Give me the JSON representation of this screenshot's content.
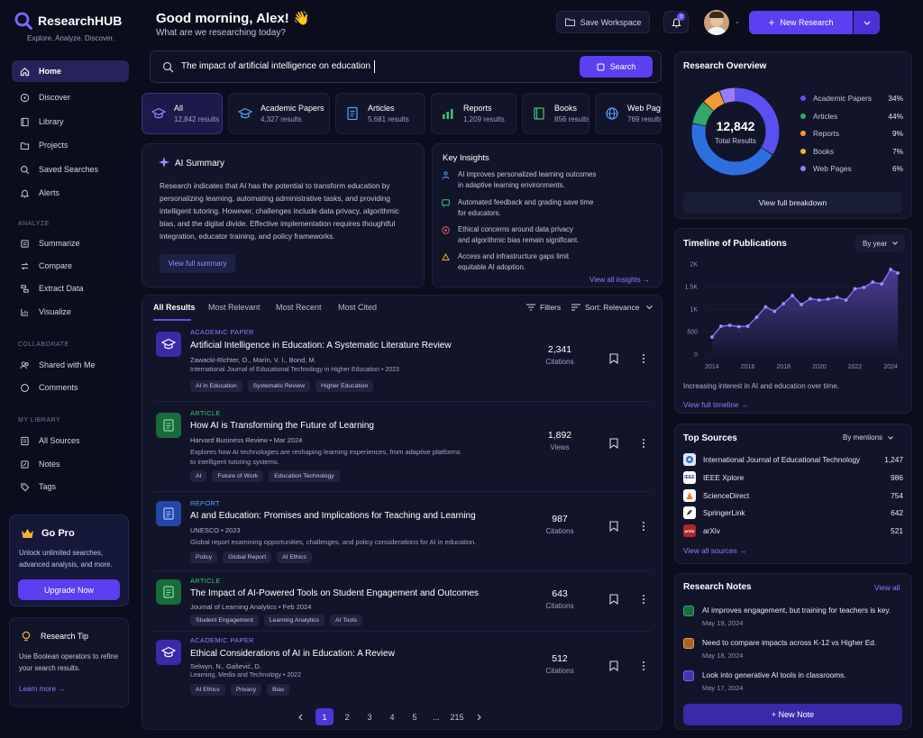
{
  "app": {
    "name": "ResearchHUB",
    "tagline": "Explore. Analyze. Discover."
  },
  "sidebar": {
    "main": [
      {
        "label": "Home",
        "icon": "home-icon",
        "active": true
      },
      {
        "label": "Discover",
        "icon": "compass-icon"
      },
      {
        "label": "Library",
        "icon": "book-icon"
      },
      {
        "label": "Projects",
        "icon": "folder-icon"
      },
      {
        "label": "Saved Searches",
        "icon": "search-icon"
      },
      {
        "label": "Alerts",
        "icon": "bell-icon"
      }
    ],
    "analyze_heading": "ANALYZE",
    "analyze": [
      {
        "label": "Summarize",
        "icon": "list-icon"
      },
      {
        "label": "Compare",
        "icon": "compare-icon"
      },
      {
        "label": "Extract Data",
        "icon": "extract-icon"
      },
      {
        "label": "Visualize",
        "icon": "chart-icon"
      }
    ],
    "collaborate_heading": "COLLABORATE",
    "collaborate": [
      {
        "label": "Shared with Me",
        "icon": "users-icon"
      },
      {
        "label": "Comments",
        "icon": "comment-icon"
      }
    ],
    "library_heading": "MY LIBRARY",
    "library": [
      {
        "label": "All Sources",
        "icon": "sources-icon"
      },
      {
        "label": "Notes",
        "icon": "note-icon"
      },
      {
        "label": "Tags",
        "icon": "tag-icon"
      }
    ],
    "pro": {
      "title": "Go Pro",
      "text": "Unlock unlimited searches, advanced analysis, and more.",
      "button": "Upgrade Now"
    },
    "tip": {
      "title": "Research Tip",
      "text": "Use Boolean operators to refine your search results.",
      "link": "Learn more →"
    }
  },
  "header": {
    "greeting": "Good morning, Alex! 👋",
    "subtitle": "What are we researching today?",
    "save_workspace": "Save Workspace",
    "notification_count": "3",
    "new_research": "New Research"
  },
  "search": {
    "query": "The impact of artificial intelligence on education",
    "button": "Search"
  },
  "filters": [
    {
      "label": "All",
      "count": "12,842 results",
      "icon": "cap-icon",
      "color": "#9b8cff",
      "active": true
    },
    {
      "label": "Academic Papers",
      "count": "4,327 results",
      "icon": "cap-icon",
      "color": "#5aa2ff"
    },
    {
      "label": "Articles",
      "count": "5,681 results",
      "icon": "doc-icon",
      "color": "#5aa2ff"
    },
    {
      "label": "Reports",
      "count": "1,209 results",
      "icon": "bars-icon",
      "color": "#3ec46d"
    },
    {
      "label": "Books",
      "count": "856 results",
      "icon": "book-icon",
      "color": "#3ec46d"
    },
    {
      "label": "Web Pages",
      "count": "769 results",
      "icon": "globe-icon",
      "color": "#5aa2ff"
    }
  ],
  "ai_summary": {
    "title": "AI Summary",
    "lines": [
      "Research indicates that AI has the potential to transform education by",
      "personalizing learning, automating administrative tasks, and providing",
      "intelligent tutoring. However, challenges include data privacy, algorithmic",
      "bias, and the digital divide. Effective implementation requires thoughtful",
      "integration, educator training, and policy frameworks."
    ],
    "button": "View full summary"
  },
  "insights": {
    "title": "Key Insights",
    "items": [
      {
        "l1": "AI improves personalized learning outcomes",
        "l2": "in adaptive learning environments.",
        "color": "#5aa2ff"
      },
      {
        "l1": "Automated feedback and grading save time",
        "l2": "for educators.",
        "color": "#3ec46d"
      },
      {
        "l1": "Ethical concerns around data privacy",
        "l2": "and algorithmic bias remain significant.",
        "color": "#ef5a5a"
      },
      {
        "l1": "Access and infrastructure gaps limit",
        "l2": "equitable AI adoption.",
        "color": "#f2a33a"
      }
    ],
    "link": "View all insights →"
  },
  "results": {
    "tabs": [
      "All Results",
      "Most Relevant",
      "Most Recent",
      "Most Cited"
    ],
    "filters_label": "Filters",
    "sort_label": "Sort: Relevance",
    "items": [
      {
        "type": "ACADEMIC PAPER",
        "type_color": "#8b7cff",
        "icon": "cap-icon",
        "icon_bg": "#3a2aa8",
        "title": "Artificial Intelligence in Education: A Systematic Literature Review",
        "authors": "Zawacki-Richter, O., Marín, V. I., Bond, M.",
        "source": "International Journal of Educational Technology in Higher Education  •  2023",
        "desc": "",
        "tags": [
          "AI in Education",
          "Systematic Review",
          "Higher Education"
        ],
        "count": "2,341",
        "count_label": "Citations"
      },
      {
        "type": "ARTICLE",
        "type_color": "#3ec46d",
        "icon": "doc-icon",
        "icon_bg": "#1a6a3a",
        "title": "How AI is Transforming the Future of Learning",
        "authors": "Harvard Business Review  •  Mar 2024",
        "source": "",
        "desc": "Explores how AI technologies are reshaping learning experiences, from adaptive platforms to intelligent tutoring systems.",
        "tags": [
          "AI",
          "Future of Work",
          "Education Technology"
        ],
        "count": "1,892",
        "count_label": "Views"
      },
      {
        "type": "REPORT",
        "type_color": "#5aa2ff",
        "icon": "doc-icon",
        "icon_bg": "#2546a8",
        "title": "AI and Education: Promises and Implications for Teaching and Learning",
        "authors": "UNESCO  •  2023",
        "source": "",
        "desc": "Global report examining opportunities, challenges, and policy considerations for AI in education.",
        "tags": [
          "Policy",
          "Global Report",
          "AI Ethics"
        ],
        "count": "987",
        "count_label": "Citations"
      },
      {
        "type": "ARTICLE",
        "type_color": "#3ec46d",
        "icon": "doc-icon",
        "icon_bg": "#1a6a3a",
        "title": "The Impact of AI-Powered Tools on Student Engagement and Outcomes",
        "authors": "Journal of Learning Analytics  •  Feb 2024",
        "source": "",
        "desc": "",
        "tags": [
          "Student Engagement",
          "Learning Analytics",
          "AI Tools"
        ],
        "count": "643",
        "count_label": "Citations"
      },
      {
        "type": "ACADEMIC PAPER",
        "type_color": "#8b7cff",
        "icon": "cap-icon",
        "icon_bg": "#3a2aa8",
        "title": "Ethical Considerations of AI in Education: A Review",
        "authors": "Selwyn, N., Gašević, D.",
        "source": "Learning, Media and Technology  •  2022",
        "desc": "",
        "tags": [
          "AI Ethics",
          "Privacy",
          "Bias"
        ],
        "count": "512",
        "count_label": "Citations"
      }
    ],
    "pages": [
      "1",
      "2",
      "3",
      "4",
      "5",
      "...",
      "215"
    ]
  },
  "overview": {
    "title": "Research Overview",
    "total": "12,842",
    "total_label": "Total Results",
    "legend": [
      {
        "label": "Academic Papers",
        "pct": "34%",
        "value": 34,
        "color": "#5a4ff0"
      },
      {
        "label": "Articles",
        "pct": "44%",
        "value": 44,
        "color": "#2e6fe0"
      },
      {
        "label": "Reports",
        "pct": "9%",
        "value": 9,
        "color": "#2fa86a"
      },
      {
        "label": "Books",
        "pct": "7%",
        "value": 7,
        "color": "#f29a38"
      },
      {
        "label": "Web Pages",
        "pct": "6%",
        "value": 6,
        "color": "#9a7cff"
      }
    ],
    "button": "View full breakdown"
  },
  "timeline": {
    "title": "Timeline of Publications",
    "dropdown": "By year",
    "caption": "Increasing interest in AI and education over time.",
    "link": "View full timeline →"
  },
  "chart_data": {
    "type": "area",
    "title": "",
    "xlabel": "",
    "ylabel": "",
    "x_ticks": [
      "2014",
      "2016",
      "2018",
      "2020",
      "2022",
      "2024"
    ],
    "y_ticks": [
      "0",
      "500",
      "1K",
      "1.5K",
      "2K"
    ],
    "ylim": [
      0,
      2000
    ],
    "xlim": [
      2013.6,
      2024.6
    ],
    "x": [
      2014,
      2014.5,
      2015,
      2015.5,
      2016,
      2016.5,
      2017,
      2017.5,
      2018,
      2018.5,
      2019,
      2019.5,
      2020,
      2020.5,
      2021,
      2021.5,
      2022,
      2022.5,
      2023,
      2023.5,
      2024,
      2024.4
    ],
    "series": [
      {
        "values": [
          380,
          620,
          640,
          610,
          620,
          820,
          1050,
          950,
          1120,
          1300,
          1100,
          1230,
          1200,
          1220,
          1260,
          1200,
          1450,
          1480,
          1600,
          1560,
          1880,
          1800
        ]
      }
    ],
    "grid": true,
    "legend": "none"
  },
  "top_sources": {
    "title": "Top Sources",
    "dropdown": "By mentions",
    "items": [
      {
        "name": "International Journal of Educational Technology",
        "count": "1,247",
        "logo_bg": "#3a6fd0",
        "logo_text": ""
      },
      {
        "name": "IEEE Xplore",
        "count": "986",
        "logo_bg": "#ffffff",
        "logo_text": "IEEE"
      },
      {
        "name": "ScienceDirect",
        "count": "754",
        "logo_bg": "#ffffff",
        "logo_text": ""
      },
      {
        "name": "SpringerLink",
        "count": "642",
        "logo_bg": "#ffffff",
        "logo_text": ""
      },
      {
        "name": "arXiv",
        "count": "521",
        "logo_bg": "#b3262a",
        "logo_text": "arXiv"
      }
    ],
    "link": "View all sources →"
  },
  "notes": {
    "title": "Research Notes",
    "view_all": "View all",
    "items": [
      {
        "text": "AI improves engagement, but training for teachers is key.",
        "date": "May 19, 2024",
        "color": "#2fa86a"
      },
      {
        "text": "Need to compare impacts across K-12 vs Higher Ed.",
        "date": "May 18, 2024",
        "color": "#f29a38"
      },
      {
        "text": "Look into generative AI tools in classrooms.",
        "date": "May 17, 2024",
        "color": "#7a5cf0"
      }
    ],
    "button": "+ New Note"
  }
}
